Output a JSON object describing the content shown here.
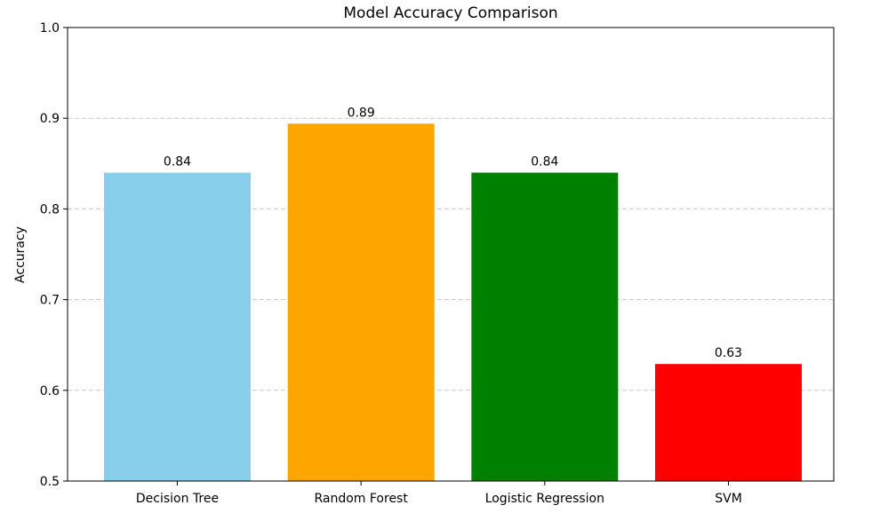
{
  "chart_data": {
    "type": "bar",
    "title": "Model Accuracy Comparison",
    "xlabel": "",
    "ylabel": "Accuracy",
    "categories": [
      "Decision Tree",
      "Random Forest",
      "Logistic Regression",
      "SVM"
    ],
    "values": [
      0.84,
      0.894,
      0.84,
      0.629
    ],
    "value_labels": [
      "0.84",
      "0.89",
      "0.84",
      "0.63"
    ],
    "colors": [
      "#87CEEB",
      "#FFA500",
      "#008000",
      "#FF0000"
    ],
    "ylim": [
      0.5,
      1.0
    ],
    "yticks": [
      0.5,
      0.6,
      0.7,
      0.8,
      0.9,
      1.0
    ],
    "ytick_labels": [
      "0.5",
      "0.6",
      "0.7",
      "0.8",
      "0.9",
      "1.0"
    ],
    "grid": {
      "axis": "y",
      "style": "dashed",
      "color": "#c8c8c8"
    },
    "legend": "none"
  }
}
